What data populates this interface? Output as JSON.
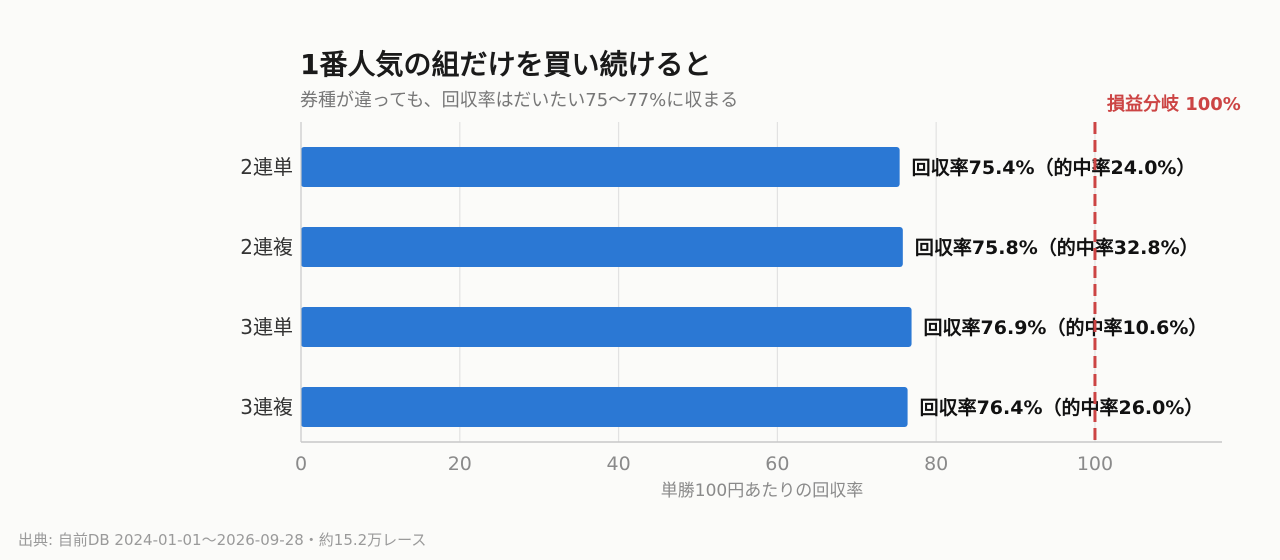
{
  "chart_data": {
    "type": "bar",
    "orientation": "horizontal",
    "title": "1番人気の組だけを買い続けると",
    "subtitle": "券種が違っても、回収率はだいたい75〜77%に収まる",
    "categories": [
      "2連単",
      "2連複",
      "3連単",
      "3連複"
    ],
    "values": [
      75.4,
      75.8,
      76.9,
      76.4
    ],
    "data_labels": [
      "回収率75.4%（的中率24.0%）",
      "回収率75.8%（的中率32.8%）",
      "回収率76.9%（的中率10.6%）",
      "回収率76.4%（的中率26.0%）"
    ],
    "xlabel": "単勝100円あたりの回収率",
    "xlim": [
      0,
      116
    ],
    "xticks": [
      "0",
      "20",
      "40",
      "60",
      "80",
      "100"
    ],
    "reference_line": {
      "value": 100,
      "label": "損益分岐 100%",
      "color": "#cc4444"
    },
    "bar_color": "#2b78d4",
    "grid": "vertical",
    "legend": "none"
  },
  "source_note": "出典: 自前DB 2024-01-01〜2026-09-28・約15.2万レース"
}
